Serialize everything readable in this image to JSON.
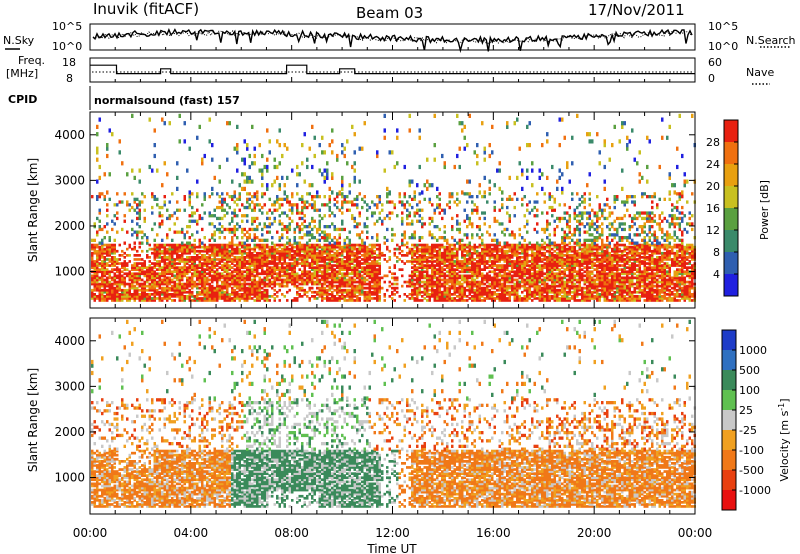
{
  "header": {
    "station": "Inuvik (fitACF)",
    "beam": "Beam 03",
    "date": "17/Nov/2011"
  },
  "sidebar": {
    "nsky_label": "N.Sky",
    "nsearch_label": "N.Search",
    "freq_label": "Freq.",
    "freq_unit": "[MHz]",
    "nave_label": "Nave",
    "cpid_label": "CPID",
    "cpid_value": "normalsound (fast) 157"
  },
  "colors": {
    "power": [
      "#2020e0",
      "#2f5fb0",
      "#3a8a6a",
      "#5aa040",
      "#c8c020",
      "#e8a010",
      "#f07010",
      "#e82010"
    ],
    "velocity": [
      "#1e3cc8",
      "#2f70c0",
      "#3a8a5a",
      "#5fc050",
      "#c8c8c8",
      "#f0a020",
      "#f07818",
      "#e84010",
      "#e81010"
    ]
  },
  "chart_data": [
    {
      "type": "line",
      "panel": "noise",
      "series": [
        {
          "name": "N.Sky",
          "style": "solid"
        },
        {
          "name": "N.Search",
          "style": "dotted"
        }
      ],
      "y_ticks_left": [
        "10^5",
        "10^0"
      ],
      "y_ticks_right": [
        "10^5",
        "10^0"
      ],
      "y_scale": "log",
      "x_range_hours": [
        0,
        24
      ]
    },
    {
      "type": "line",
      "panel": "frequency",
      "y_ticks_left": [
        "18",
        "8"
      ],
      "y_ticks_right": [
        "60",
        "0"
      ],
      "series": [
        {
          "name": "Freq.",
          "style": "solid",
          "x_hours": [
            0,
            1.05,
            1.05,
            2.8,
            2.8,
            3.2,
            3.2,
            7.8,
            7.8,
            8.6,
            8.6,
            9.9,
            9.9,
            10.5,
            10.5,
            24
          ],
          "y": [
            15,
            15,
            11.5,
            11.5,
            13.5,
            13.5,
            11.5,
            11.5,
            15,
            15,
            11.5,
            11.5,
            13.5,
            13.5,
            11.5,
            11.5
          ]
        },
        {
          "name": "Nave",
          "style": "dotted"
        }
      ]
    },
    {
      "type": "heatmap",
      "panel": "power",
      "ylabel": "Slant Range [km]",
      "y_ticks": [
        1000,
        2000,
        3000,
        4000
      ],
      "ylim": [
        200,
        4500
      ],
      "colorbar_label": "Power [dB]",
      "colorbar_ticks": [
        28,
        24,
        20,
        16,
        12,
        8,
        4
      ],
      "colorbar_range": [
        0,
        32
      ]
    },
    {
      "type": "heatmap",
      "panel": "velocity",
      "ylabel": "Slant Range [km]",
      "y_ticks": [
        1000,
        2000,
        3000,
        4000
      ],
      "ylim": [
        200,
        4500
      ],
      "xlabel": "Time UT",
      "x_ticks": [
        "00:00",
        "04:00",
        "08:00",
        "12:00",
        "16:00",
        "20:00",
        "00:00"
      ],
      "colorbar_label": "Velocity [m s",
      "colorbar_label_sup": "-1",
      "colorbar_label_end": "]",
      "colorbar_ticks": [
        "1000",
        "500",
        "100",
        "25",
        "-25",
        "-100",
        "-500",
        "-1000"
      ]
    }
  ]
}
